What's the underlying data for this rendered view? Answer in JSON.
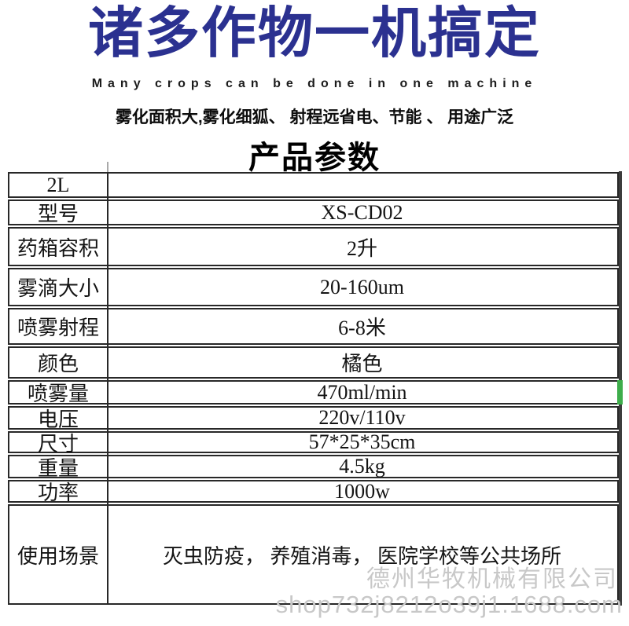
{
  "header": {
    "title": "诸多作物一机搞定",
    "subtitle_en": "Many crops can be done in one machine",
    "tagline": "雾化面积大,雾化细狐、 射程远省电、节能 、 用途广泛",
    "section_title": "产品参数"
  },
  "colors": {
    "title_blue": "#2b3190",
    "table_border": "#282828",
    "green_marker": "#3ead4b",
    "watermark_gray": "#c8c8c8"
  },
  "spec_table": {
    "rows": [
      {
        "label": "2L",
        "value": ""
      },
      {
        "label": "型号",
        "value": "XS-CD02"
      },
      {
        "label": "药箱容积",
        "value": "2升"
      },
      {
        "label": "雾滴大小",
        "value": "20-160um"
      },
      {
        "label": "喷雾射程",
        "value": "6-8米"
      },
      {
        "label": "颜色",
        "value": "橘色"
      },
      {
        "label": "喷雾量",
        "value": "470ml/min"
      },
      {
        "label": "电压",
        "value": "220v/110v"
      },
      {
        "label": "尺寸",
        "value": "57*25*35cm"
      },
      {
        "label": "重量",
        "value": "4.5kg"
      },
      {
        "label": "功率",
        "value": "1000w"
      },
      {
        "label": "使用场景",
        "value": "灭虫防疫， 养殖消毒， 医院学校等公共场所"
      }
    ]
  },
  "watermark": {
    "company": "德州华牧机械有限公司",
    "shop_url": "shop732j8212o39j1.1688.com"
  }
}
